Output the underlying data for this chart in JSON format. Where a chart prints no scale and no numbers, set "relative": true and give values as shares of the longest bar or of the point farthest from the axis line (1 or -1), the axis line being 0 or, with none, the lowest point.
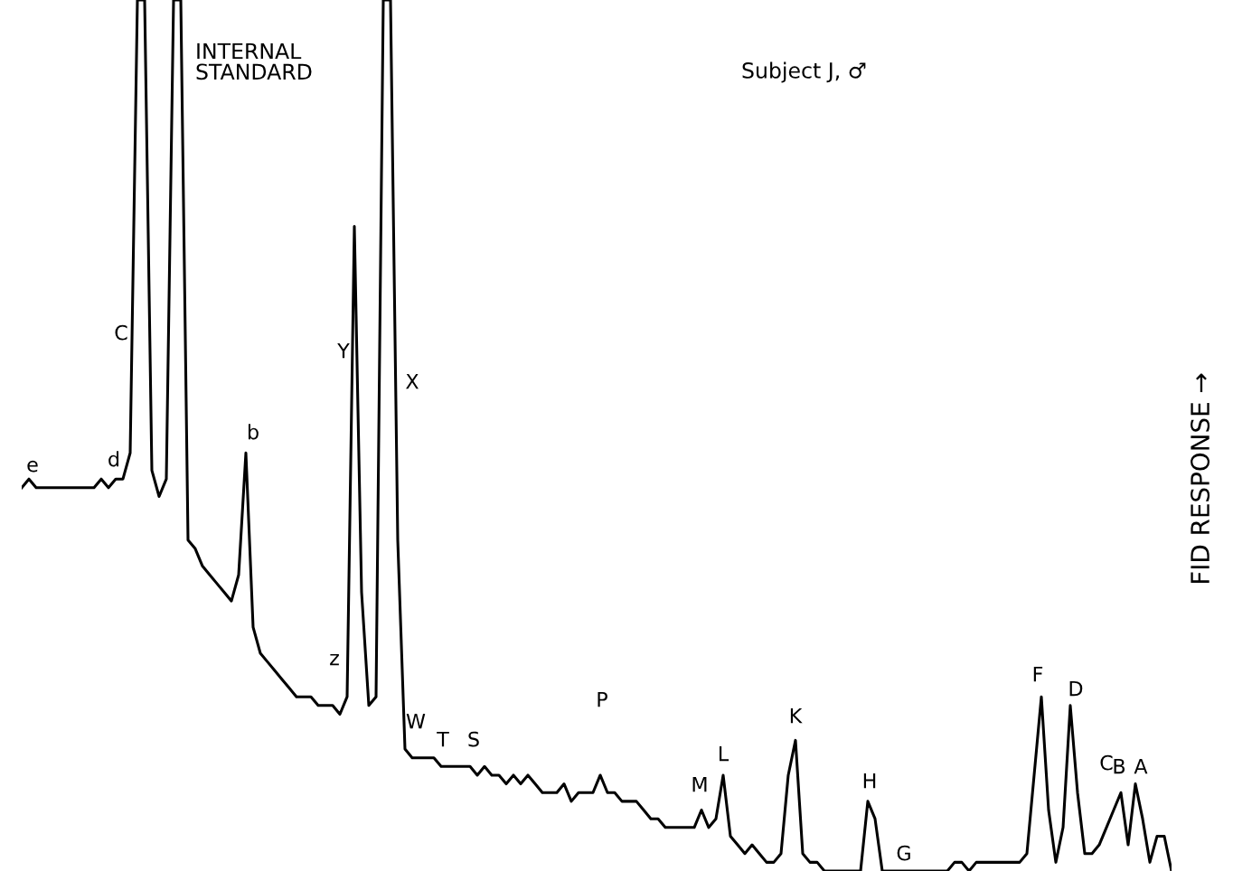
{
  "chart_data": {
    "type": "line",
    "relative": true,
    "ylabel": "FID RESPONSE →",
    "color": "#000000",
    "categories": [
      null,
      null,
      null,
      null,
      null,
      null,
      null,
      null,
      null,
      null,
      null,
      null,
      null,
      null,
      null,
      null,
      null,
      null,
      null,
      null,
      null,
      null,
      null,
      null,
      null,
      null,
      null,
      null,
      null,
      null,
      null,
      null,
      null,
      null,
      null,
      null,
      null,
      null,
      null,
      null,
      null,
      null,
      null,
      null,
      null,
      null,
      null,
      null,
      null,
      null,
      null,
      null,
      null,
      null,
      null,
      null,
      null,
      null,
      null,
      null,
      null,
      null,
      null,
      null,
      null,
      null,
      null,
      null,
      null,
      null,
      null,
      null,
      null,
      null,
      null,
      null,
      null,
      null,
      null,
      null,
      null,
      null,
      null,
      null,
      null,
      null,
      null,
      null,
      null,
      null,
      null,
      null,
      null,
      null,
      null,
      null,
      null,
      null,
      null,
      null,
      null,
      null,
      null,
      null,
      null,
      null,
      null,
      null,
      null,
      null,
      null,
      null,
      null,
      null,
      null,
      null,
      null,
      null,
      null,
      null,
      null,
      null,
      null,
      null,
      null,
      null,
      null,
      null,
      null,
      null,
      null,
      null,
      null,
      null,
      null,
      null,
      null,
      null,
      null,
      null,
      null,
      null,
      null,
      null,
      null,
      null,
      null,
      null,
      null,
      null,
      null,
      null,
      null,
      null,
      null,
      null,
      null,
      null,
      null,
      null
    ],
    "values": [
      0.44,
      0.45,
      0.44,
      0.44,
      0.44,
      0.44,
      0.44,
      0.44,
      0.44,
      0.44,
      0.44,
      0.45,
      0.44,
      0.45,
      0.45,
      0.48,
      1,
      1,
      0.46,
      0.43,
      0.45,
      1,
      1,
      0.38,
      0.37,
      0.35,
      0.34,
      0.33,
      0.32,
      0.31,
      0.34,
      0.48,
      0.28,
      0.25,
      0.24,
      0.23,
      0.22,
      0.21,
      0.2,
      0.2,
      0.2,
      0.19,
      0.19,
      0.19,
      0.18,
      0.2,
      0.74,
      0.32,
      0.19,
      0.2,
      1,
      1,
      0.38,
      0.14,
      0.13,
      0.13,
      0.13,
      0.13,
      0.12,
      0.12,
      0.12,
      0.12,
      0.12,
      0.11,
      0.12,
      0.11,
      0.11,
      0.1,
      0.11,
      0.1,
      0.11,
      0.1,
      0.09,
      0.09,
      0.09,
      0.1,
      0.08,
      0.09,
      0.09,
      0.09,
      0.11,
      0.09,
      0.09,
      0.08,
      0.08,
      0.08,
      0.07,
      0.06,
      0.06,
      0.05,
      0.05,
      0.05,
      0.05,
      0.05,
      0.07,
      0.05,
      0.06,
      0.11,
      0.04,
      0.03,
      0.02,
      0.03,
      0.02,
      0.01,
      0.01,
      0.02,
      0.11,
      0.15,
      0.02,
      0.01,
      0.01,
      0,
      0,
      0,
      0,
      0,
      0,
      0.08,
      0.06,
      0,
      0,
      0,
      0,
      0,
      0,
      0,
      0,
      0,
      0,
      0.01,
      0.01,
      0,
      0.01,
      0.01,
      0.01,
      0.01,
      0.01,
      0.01,
      0.01,
      0.02,
      0.11,
      0.2,
      0.07,
      0.01,
      0.05,
      0.19,
      0.09,
      0.02,
      0.02,
      0.03,
      0.05,
      0.07,
      0.09,
      0.03,
      0.1,
      0.06,
      0.01,
      0.04,
      0.04,
      0
    ],
    "annotations": [
      "INTERNAL\nSTANDARD",
      "Subject J, ♂",
      "e",
      "d",
      "C",
      "b",
      "z",
      "Y",
      "X",
      "W",
      "T",
      "S",
      "P",
      "M",
      "L",
      "K",
      "H",
      "G",
      "F",
      "D",
      "C",
      "B",
      "A"
    ]
  }
}
